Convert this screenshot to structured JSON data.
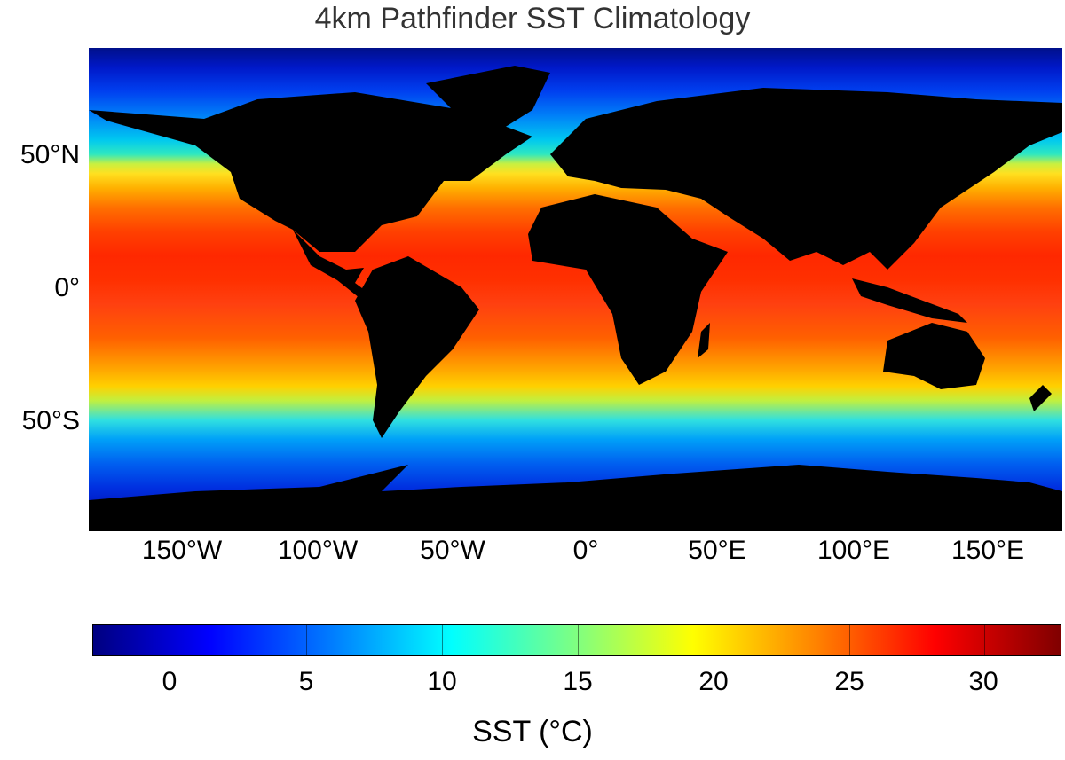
{
  "title": "4km Pathfinder SST Climatology",
  "y_ticks": [
    "50°N",
    "0°",
    "50°S"
  ],
  "x_ticks": [
    "150°W",
    "100°W",
    "50°W",
    "0°",
    "50°E",
    "100°E",
    "150°E"
  ],
  "colorbar": {
    "label": "SST (°C)",
    "ticks": [
      "0",
      "5",
      "10",
      "15",
      "20",
      "25",
      "30"
    ],
    "colors": [
      "#000080",
      "#0000ff",
      "#0080ff",
      "#00ffff",
      "#80ff80",
      "#ffff00",
      "#ff8000",
      "#ff0000",
      "#800000"
    ]
  },
  "land_color": "#000000"
}
